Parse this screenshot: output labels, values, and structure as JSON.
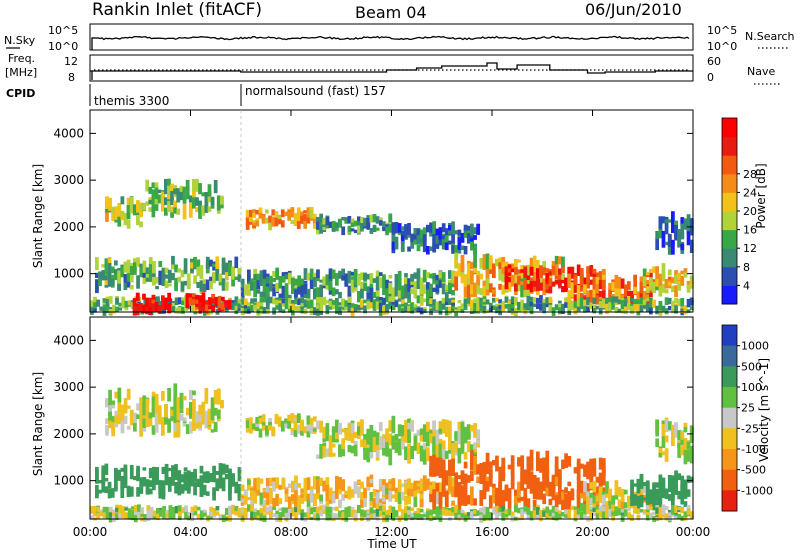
{
  "header": {
    "site": "Rankin Inlet (fitACF)",
    "beam": "Beam 04",
    "date": "06/Jun/2010"
  },
  "top_panels": {
    "nsky_label": "N.Sky",
    "nsearch_label": "N.Search",
    "noise_ticks": [
      "10^5",
      "10^0"
    ],
    "freq_label_1": "Freq.",
    "freq_label_2": "[MHz]",
    "freq_ticks": [
      "12",
      "8"
    ],
    "nave_label": "Nave",
    "nave_ticks": [
      "60",
      "0"
    ],
    "cpid_label": "CPID",
    "cpid_segments": [
      "themis 3300",
      "normalsound (fast) 157"
    ]
  },
  "colors": {
    "frame": "#000000",
    "scatter_blue": "#1f3fbf",
    "scatter_green": "#3aa34a",
    "ground_grey": "#c4c4c4"
  },
  "chart_data": [
    {
      "type": "heatmap",
      "title": "",
      "xlabel": "Time UT",
      "ylabel": "Slant Range [km]",
      "x_ticks": [
        "00:00",
        "04:00",
        "08:00",
        "12:00",
        "16:00",
        "20:00",
        "00:00"
      ],
      "x_range_hours": [
        0,
        24
      ],
      "y_ticks": [
        1000,
        2000,
        3000,
        4000
      ],
      "ylim": [
        180,
        4500
      ],
      "colorbar": {
        "label": "Power [dB]",
        "ticks": [
          "4",
          "8",
          "12",
          "16",
          "20",
          "24",
          "28"
        ],
        "colors": [
          "#1a1aff",
          "#2b4fb0",
          "#3a8a73",
          "#38a846",
          "#b0d23a",
          "#f2c21a",
          "#f58c1a",
          "#f25a12",
          "#e81a12",
          "#ff0000"
        ]
      },
      "echo_regions": [
        {
          "t0": 0.6,
          "t1": 2.2,
          "r0": 2050,
          "r1": 2600,
          "level": 0.45
        },
        {
          "t0": 2.2,
          "t1": 5.3,
          "r0": 2300,
          "r1": 2900,
          "level": 0.4
        },
        {
          "t0": 6.2,
          "t1": 9.0,
          "r0": 2000,
          "r1": 2350,
          "level": 0.6
        },
        {
          "t0": 9.0,
          "t1": 12.0,
          "r0": 1900,
          "r1": 2200,
          "level": 0.3
        },
        {
          "t0": 12.0,
          "t1": 15.5,
          "r0": 1500,
          "r1": 2000,
          "level": 0.2
        },
        {
          "t0": 0.2,
          "t1": 6.0,
          "r0": 700,
          "r1": 1250,
          "level": 0.35
        },
        {
          "t0": 6.0,
          "t1": 14.5,
          "r0": 500,
          "r1": 1000,
          "level": 0.3
        },
        {
          "t0": 14.5,
          "t1": 19.0,
          "r0": 600,
          "r1": 1300,
          "level": 0.55
        },
        {
          "t0": 16.5,
          "t1": 20.5,
          "r0": 650,
          "r1": 1100,
          "level": 0.85
        },
        {
          "t0": 19.0,
          "t1": 22.5,
          "r0": 350,
          "r1": 900,
          "level": 0.7
        },
        {
          "t0": 22.0,
          "t1": 24.0,
          "r0": 600,
          "r1": 1100,
          "level": 0.55
        },
        {
          "t0": 0.0,
          "t1": 24.0,
          "r0": 180,
          "r1": 450,
          "level": 0.35
        },
        {
          "t0": 1.7,
          "t1": 3.2,
          "r0": 200,
          "r1": 520,
          "level": 0.95
        },
        {
          "t0": 3.8,
          "t1": 5.6,
          "r0": 200,
          "r1": 520,
          "level": 0.9
        },
        {
          "t0": 22.5,
          "t1": 24.0,
          "r0": 1500,
          "r1": 2200,
          "level": 0.15
        }
      ]
    },
    {
      "type": "heatmap",
      "title": "",
      "xlabel": "Time UT",
      "ylabel": "Slant Range [km]",
      "x_ticks": [
        "00:00",
        "04:00",
        "08:00",
        "12:00",
        "16:00",
        "20:00",
        "00:00"
      ],
      "x_range_hours": [
        0,
        24
      ],
      "y_ticks": [
        1000,
        2000,
        3000,
        4000
      ],
      "ylim": [
        180,
        4500
      ],
      "colorbar": {
        "label": "Velocity [m s^-1]",
        "ticks": [
          "1000",
          "500",
          "100",
          "25",
          "-25",
          "-100",
          "-500",
          "-1000"
        ],
        "colors": [
          "#2040c0",
          "#3a6a9a",
          "#3a9a5a",
          "#60c040",
          "#c8c8c8",
          "#f0c020",
          "#f5961a",
          "#f06010",
          "#e82010"
        ]
      },
      "echo_regions": [
        {
          "t0": 0.6,
          "t1": 5.3,
          "r0": 2050,
          "r1": 2900,
          "vel": 0
        },
        {
          "t0": 6.2,
          "t1": 9.0,
          "r0": 2000,
          "r1": 2350,
          "vel": 0
        },
        {
          "t0": 9.0,
          "t1": 15.5,
          "r0": 1500,
          "r1": 2200,
          "vel": 0
        },
        {
          "t0": 0.2,
          "t1": 6.0,
          "r0": 700,
          "r1": 1250,
          "vel": 150
        },
        {
          "t0": 6.0,
          "t1": 14.5,
          "r0": 500,
          "r1": 1000,
          "vel": -40
        },
        {
          "t0": 13.5,
          "t1": 20.5,
          "r0": 500,
          "r1": 1450,
          "vel": -350
        },
        {
          "t0": 19.5,
          "t1": 22.5,
          "r0": 350,
          "r1": 900,
          "vel": -20
        },
        {
          "t0": 21.5,
          "t1": 24.0,
          "r0": 500,
          "r1": 1100,
          "vel": 180
        },
        {
          "t0": 0.0,
          "t1": 24.0,
          "r0": 180,
          "r1": 420,
          "vel": 5
        },
        {
          "t0": 22.5,
          "t1": 24.0,
          "r0": 1500,
          "r1": 2200,
          "vel": 0
        }
      ]
    }
  ]
}
